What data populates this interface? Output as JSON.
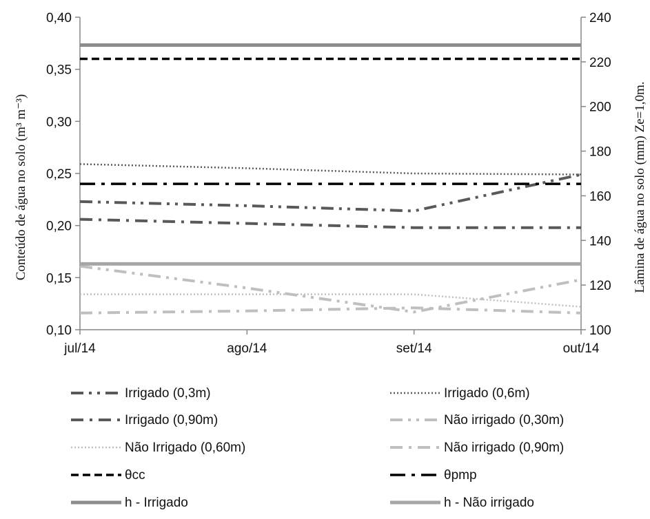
{
  "chart_data": {
    "type": "line",
    "categories": [
      "jul/14",
      "ago/14",
      "set/14",
      "out/14"
    ],
    "ylabel": "Conteúdo de água no solo (m³ m⁻³)",
    "ylabel_right": "Lâmina de água no solo (mm) Ze=1,0m.",
    "ylim": [
      0.1,
      0.4
    ],
    "y2lim": [
      100,
      240
    ],
    "y_ticks": [
      "0,10",
      "0,15",
      "0,20",
      "0,25",
      "0,30",
      "0,35",
      "0,40"
    ],
    "y2_ticks": [
      "100",
      "120",
      "140",
      "160",
      "180",
      "200",
      "220",
      "240"
    ],
    "grid": false,
    "legend_position": "bottom",
    "series": [
      {
        "name": "Irrigado (0,3m)",
        "axis": "left",
        "color": "#595959",
        "dash": "dashdotdot",
        "width": 4,
        "values": [
          0.223,
          0.219,
          0.214,
          0.249
        ]
      },
      {
        "name": "Irrigado (0,6m)",
        "axis": "left",
        "color": "#595959",
        "dash": "dot",
        "width": 2.5,
        "values": [
          0.259,
          0.255,
          0.25,
          0.249
        ]
      },
      {
        "name": "Irrigado (0,90m)",
        "axis": "left",
        "color": "#595959",
        "dash": "dashdot",
        "width": 4,
        "values": [
          0.206,
          0.202,
          0.198,
          0.198
        ]
      },
      {
        "name": "Não irrigado (0,30m)",
        "axis": "left",
        "color": "#bfbfbf",
        "dash": "dashdotdot",
        "width": 4,
        "values": [
          0.161,
          0.14,
          0.117,
          0.148
        ]
      },
      {
        "name": "Não Irrigado (0,60m)",
        "axis": "left",
        "color": "#bfbfbf",
        "dash": "dot",
        "width": 2.5,
        "values": [
          0.134,
          0.134,
          0.134,
          0.122
        ]
      },
      {
        "name": "Não irrigado (0,90m)",
        "axis": "left",
        "color": "#bfbfbf",
        "dash": "dashdot",
        "width": 4,
        "values": [
          0.116,
          0.118,
          0.121,
          0.116
        ]
      },
      {
        "name": "θcc",
        "axis": "left",
        "color": "#000000",
        "dash": "dash",
        "width": 3.5,
        "values": [
          0.36,
          0.36,
          0.36,
          0.36
        ]
      },
      {
        "name": "θpmp",
        "axis": "left",
        "color": "#000000",
        "dash": "longdashdot",
        "width": 3.5,
        "values": [
          0.24,
          0.24,
          0.24,
          0.24
        ]
      },
      {
        "name": "h - Irrigado",
        "axis": "right",
        "color": "#8c8c8c",
        "dash": "solid",
        "width": 5,
        "values": [
          227.5,
          227.5,
          227.5,
          227.5
        ]
      },
      {
        "name": "h - Não irrigado",
        "axis": "right",
        "color": "#a6a6a6",
        "dash": "solid",
        "width": 5,
        "values": [
          129.5,
          129.5,
          129.5,
          129.5
        ]
      }
    ]
  }
}
